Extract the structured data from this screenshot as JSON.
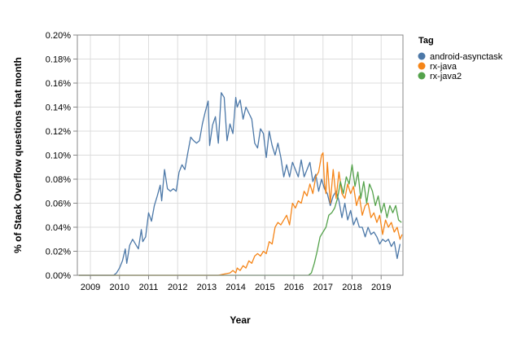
{
  "chart_data": {
    "type": "line",
    "xlabel": "Year",
    "ylabel": "% of Stack Overflow questions that month",
    "xlim": [
      2008.55,
      2019.75
    ],
    "ylim": [
      0,
      0.2
    ],
    "x_ticks": [
      2009,
      2010,
      2011,
      2012,
      2013,
      2014,
      2015,
      2016,
      2017,
      2018,
      2019
    ],
    "y_ticks": [
      0,
      0.02,
      0.04,
      0.06,
      0.08,
      0.1,
      0.12,
      0.14,
      0.16,
      0.18,
      0.2
    ],
    "y_tick_labels": [
      "0.00%",
      "0.02%",
      "0.04%",
      "0.06%",
      "0.08%",
      "0.10%",
      "0.12%",
      "0.14%",
      "0.16%",
      "0.18%",
      "0.20%"
    ],
    "grid": true,
    "legend": {
      "title": "Tag",
      "position": "top-right"
    },
    "series": [
      {
        "name": "android-asynctask",
        "color": "#4c78a8",
        "points": [
          [
            2008.6,
            0
          ],
          [
            2009.0,
            0
          ],
          [
            2009.4,
            0
          ],
          [
            2009.8,
            0
          ],
          [
            2009.9,
            0.002
          ],
          [
            2010.0,
            0.006
          ],
          [
            2010.1,
            0.012
          ],
          [
            2010.2,
            0.022
          ],
          [
            2010.25,
            0.01
          ],
          [
            2010.35,
            0.025
          ],
          [
            2010.45,
            0.03
          ],
          [
            2010.55,
            0.026
          ],
          [
            2010.65,
            0.022
          ],
          [
            2010.75,
            0.038
          ],
          [
            2010.8,
            0.028
          ],
          [
            2010.9,
            0.032
          ],
          [
            2011.0,
            0.052
          ],
          [
            2011.1,
            0.045
          ],
          [
            2011.2,
            0.058
          ],
          [
            2011.3,
            0.066
          ],
          [
            2011.4,
            0.075
          ],
          [
            2011.45,
            0.062
          ],
          [
            2011.55,
            0.088
          ],
          [
            2011.65,
            0.072
          ],
          [
            2011.75,
            0.07
          ],
          [
            2011.85,
            0.072
          ],
          [
            2011.95,
            0.07
          ],
          [
            2012.05,
            0.086
          ],
          [
            2012.15,
            0.092
          ],
          [
            2012.25,
            0.088
          ],
          [
            2012.35,
            0.102
          ],
          [
            2012.45,
            0.115
          ],
          [
            2012.55,
            0.112
          ],
          [
            2012.65,
            0.11
          ],
          [
            2012.75,
            0.112
          ],
          [
            2012.85,
            0.126
          ],
          [
            2012.95,
            0.136
          ],
          [
            2013.05,
            0.145
          ],
          [
            2013.1,
            0.108
          ],
          [
            2013.2,
            0.125
          ],
          [
            2013.3,
            0.132
          ],
          [
            2013.4,
            0.11
          ],
          [
            2013.5,
            0.152
          ],
          [
            2013.6,
            0.148
          ],
          [
            2013.7,
            0.112
          ],
          [
            2013.8,
            0.126
          ],
          [
            2013.9,
            0.118
          ],
          [
            2014.0,
            0.148
          ],
          [
            2014.05,
            0.14
          ],
          [
            2014.15,
            0.146
          ],
          [
            2014.25,
            0.13
          ],
          [
            2014.35,
            0.14
          ],
          [
            2014.45,
            0.135
          ],
          [
            2014.55,
            0.13
          ],
          [
            2014.65,
            0.11
          ],
          [
            2014.75,
            0.106
          ],
          [
            2014.85,
            0.122
          ],
          [
            2014.95,
            0.118
          ],
          [
            2015.05,
            0.098
          ],
          [
            2015.15,
            0.12
          ],
          [
            2015.25,
            0.108
          ],
          [
            2015.35,
            0.1
          ],
          [
            2015.45,
            0.11
          ],
          [
            2015.55,
            0.098
          ],
          [
            2015.65,
            0.082
          ],
          [
            2015.75,
            0.092
          ],
          [
            2015.85,
            0.082
          ],
          [
            2015.95,
            0.094
          ],
          [
            2016.05,
            0.088
          ],
          [
            2016.15,
            0.082
          ],
          [
            2016.25,
            0.096
          ],
          [
            2016.35,
            0.082
          ],
          [
            2016.45,
            0.088
          ],
          [
            2016.55,
            0.094
          ],
          [
            2016.65,
            0.078
          ],
          [
            2016.75,
            0.084
          ],
          [
            2016.85,
            0.07
          ],
          [
            2016.95,
            0.08
          ],
          [
            2017.05,
            0.072
          ],
          [
            2017.15,
            0.068
          ],
          [
            2017.25,
            0.058
          ],
          [
            2017.35,
            0.066
          ],
          [
            2017.45,
            0.07
          ],
          [
            2017.55,
            0.062
          ],
          [
            2017.65,
            0.048
          ],
          [
            2017.75,
            0.06
          ],
          [
            2017.85,
            0.046
          ],
          [
            2017.95,
            0.054
          ],
          [
            2018.05,
            0.042
          ],
          [
            2018.15,
            0.048
          ],
          [
            2018.25,
            0.04
          ],
          [
            2018.35,
            0.04
          ],
          [
            2018.45,
            0.032
          ],
          [
            2018.55,
            0.04
          ],
          [
            2018.65,
            0.034
          ],
          [
            2018.75,
            0.036
          ],
          [
            2018.85,
            0.032
          ],
          [
            2018.95,
            0.026
          ],
          [
            2019.05,
            0.03
          ],
          [
            2019.15,
            0.028
          ],
          [
            2019.25,
            0.03
          ],
          [
            2019.35,
            0.024
          ],
          [
            2019.45,
            0.028
          ],
          [
            2019.55,
            0.014
          ],
          [
            2019.65,
            0.026
          ]
        ]
      },
      {
        "name": "rx-java",
        "color": "#f58518",
        "points": [
          [
            2008.6,
            0
          ],
          [
            2010.0,
            0
          ],
          [
            2012.0,
            0
          ],
          [
            2013.4,
            0
          ],
          [
            2013.6,
            0.001
          ],
          [
            2013.8,
            0.002
          ],
          [
            2013.9,
            0.004
          ],
          [
            2014.0,
            0.002
          ],
          [
            2014.05,
            0.006
          ],
          [
            2014.15,
            0.004
          ],
          [
            2014.25,
            0.008
          ],
          [
            2014.35,
            0.006
          ],
          [
            2014.45,
            0.012
          ],
          [
            2014.55,
            0.01
          ],
          [
            2014.65,
            0.016
          ],
          [
            2014.75,
            0.018
          ],
          [
            2014.85,
            0.016
          ],
          [
            2014.95,
            0.02
          ],
          [
            2015.05,
            0.018
          ],
          [
            2015.15,
            0.028
          ],
          [
            2015.25,
            0.026
          ],
          [
            2015.35,
            0.04
          ],
          [
            2015.45,
            0.044
          ],
          [
            2015.55,
            0.042
          ],
          [
            2015.65,
            0.046
          ],
          [
            2015.75,
            0.05
          ],
          [
            2015.85,
            0.042
          ],
          [
            2015.95,
            0.06
          ],
          [
            2016.05,
            0.056
          ],
          [
            2016.15,
            0.062
          ],
          [
            2016.25,
            0.06
          ],
          [
            2016.35,
            0.07
          ],
          [
            2016.45,
            0.066
          ],
          [
            2016.55,
            0.076
          ],
          [
            2016.65,
            0.068
          ],
          [
            2016.75,
            0.082
          ],
          [
            2016.85,
            0.086
          ],
          [
            2016.95,
            0.1
          ],
          [
            2017.0,
            0.102
          ],
          [
            2017.05,
            0.076
          ],
          [
            2017.1,
            0.068
          ],
          [
            2017.15,
            0.094
          ],
          [
            2017.25,
            0.06
          ],
          [
            2017.35,
            0.088
          ],
          [
            2017.45,
            0.064
          ],
          [
            2017.55,
            0.086
          ],
          [
            2017.65,
            0.068
          ],
          [
            2017.75,
            0.064
          ],
          [
            2017.85,
            0.076
          ],
          [
            2017.95,
            0.068
          ],
          [
            2018.05,
            0.074
          ],
          [
            2018.15,
            0.058
          ],
          [
            2018.25,
            0.066
          ],
          [
            2018.35,
            0.05
          ],
          [
            2018.45,
            0.058
          ],
          [
            2018.55,
            0.06
          ],
          [
            2018.65,
            0.048
          ],
          [
            2018.75,
            0.052
          ],
          [
            2018.85,
            0.044
          ],
          [
            2018.95,
            0.05
          ],
          [
            2019.05,
            0.034
          ],
          [
            2019.15,
            0.046
          ],
          [
            2019.25,
            0.04
          ],
          [
            2019.35,
            0.044
          ],
          [
            2019.45,
            0.036
          ],
          [
            2019.55,
            0.04
          ],
          [
            2019.65,
            0.03
          ],
          [
            2019.72,
            0.034
          ]
        ]
      },
      {
        "name": "rx-java2",
        "color": "#54a24b",
        "points": [
          [
            2008.6,
            0
          ],
          [
            2012.0,
            0
          ],
          [
            2014.0,
            0
          ],
          [
            2016.5,
            0
          ],
          [
            2016.6,
            0.002
          ],
          [
            2016.7,
            0.01
          ],
          [
            2016.8,
            0.02
          ],
          [
            2016.9,
            0.032
          ],
          [
            2017.0,
            0.036
          ],
          [
            2017.1,
            0.04
          ],
          [
            2017.2,
            0.05
          ],
          [
            2017.3,
            0.052
          ],
          [
            2017.4,
            0.056
          ],
          [
            2017.5,
            0.064
          ],
          [
            2017.6,
            0.078
          ],
          [
            2017.7,
            0.068
          ],
          [
            2017.8,
            0.082
          ],
          [
            2017.9,
            0.076
          ],
          [
            2018.0,
            0.092
          ],
          [
            2018.1,
            0.074
          ],
          [
            2018.2,
            0.086
          ],
          [
            2018.3,
            0.064
          ],
          [
            2018.4,
            0.078
          ],
          [
            2018.5,
            0.06
          ],
          [
            2018.6,
            0.076
          ],
          [
            2018.7,
            0.07
          ],
          [
            2018.8,
            0.058
          ],
          [
            2018.9,
            0.066
          ],
          [
            2019.0,
            0.052
          ],
          [
            2019.1,
            0.06
          ],
          [
            2019.2,
            0.048
          ],
          [
            2019.3,
            0.058
          ],
          [
            2019.4,
            0.052
          ],
          [
            2019.5,
            0.058
          ],
          [
            2019.6,
            0.046
          ],
          [
            2019.7,
            0.044
          ]
        ]
      }
    ]
  }
}
